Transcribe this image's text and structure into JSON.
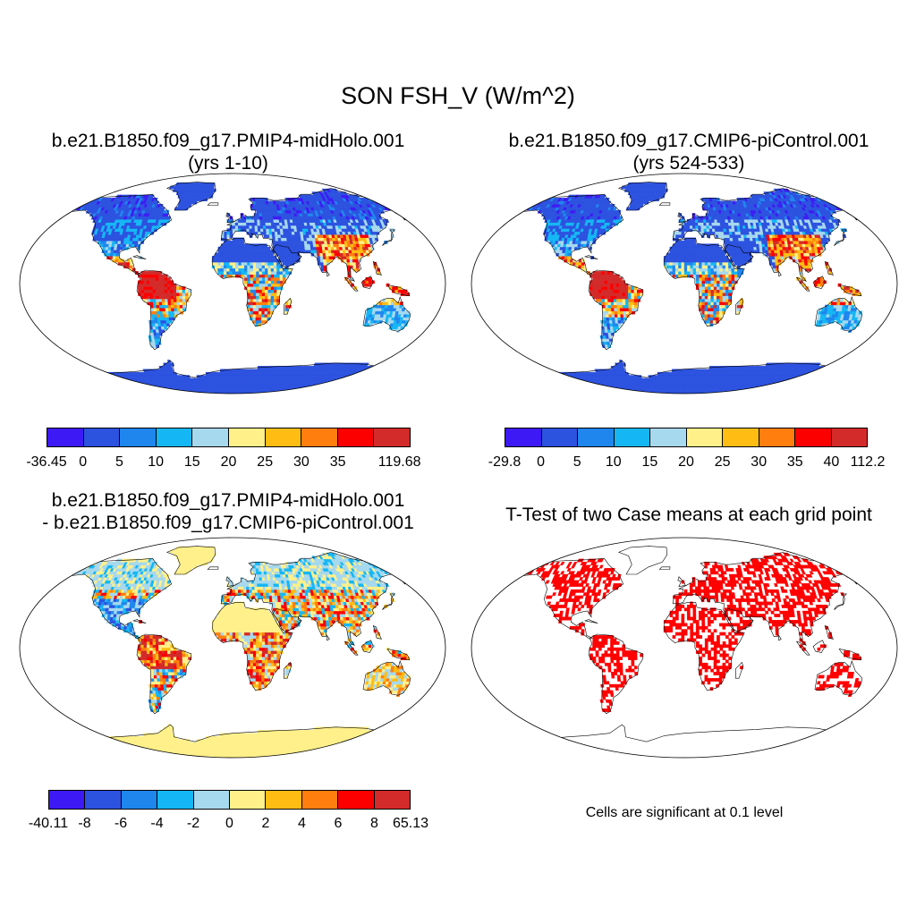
{
  "title": "SON FSH_V (W/m^2)",
  "colors": [
    "#3d1af5",
    "#2c52e0",
    "#1f86ee",
    "#14b7f4",
    "#a6d8ee",
    "#fff08a",
    "#ffbd13",
    "#ff7e0d",
    "#fc0000",
    "#d32a2a"
  ],
  "panels": [
    {
      "id": "top-left",
      "title_line1": "b.e21.B1850.f09_g17.PMIP4-midHolo.001",
      "title_line2": "(yrs 1-10)",
      "colorbar_labels": [
        "-36.45",
        "0",
        "5",
        "10",
        "15",
        "20",
        "25",
        "30",
        "35",
        "119.68"
      ]
    },
    {
      "id": "top-right",
      "title_line1": "b.e21.B1850.f09_g17.CMIP6-piControl.001",
      "title_line2": "(yrs 524-533)",
      "colorbar_labels": [
        "-29.8",
        "0",
        "5",
        "10",
        "15",
        "20",
        "25",
        "30",
        "35",
        "40",
        "112.2"
      ]
    },
    {
      "id": "bottom-left",
      "title_line1": "b.e21.B1850.f09_g17.PMIP4-midHolo.001",
      "title_line2": "- b.e21.B1850.f09_g17.CMIP6-piControl.001",
      "colorbar_labels": [
        "-40.11",
        "-8",
        "-6",
        "-4",
        "-2",
        "0",
        "2",
        "4",
        "6",
        "8",
        "65.13"
      ]
    },
    {
      "id": "bottom-right",
      "title_line1": "T-Test of two Case means at each grid point",
      "note": "Cells are significant at 0.1 level"
    }
  ]
}
